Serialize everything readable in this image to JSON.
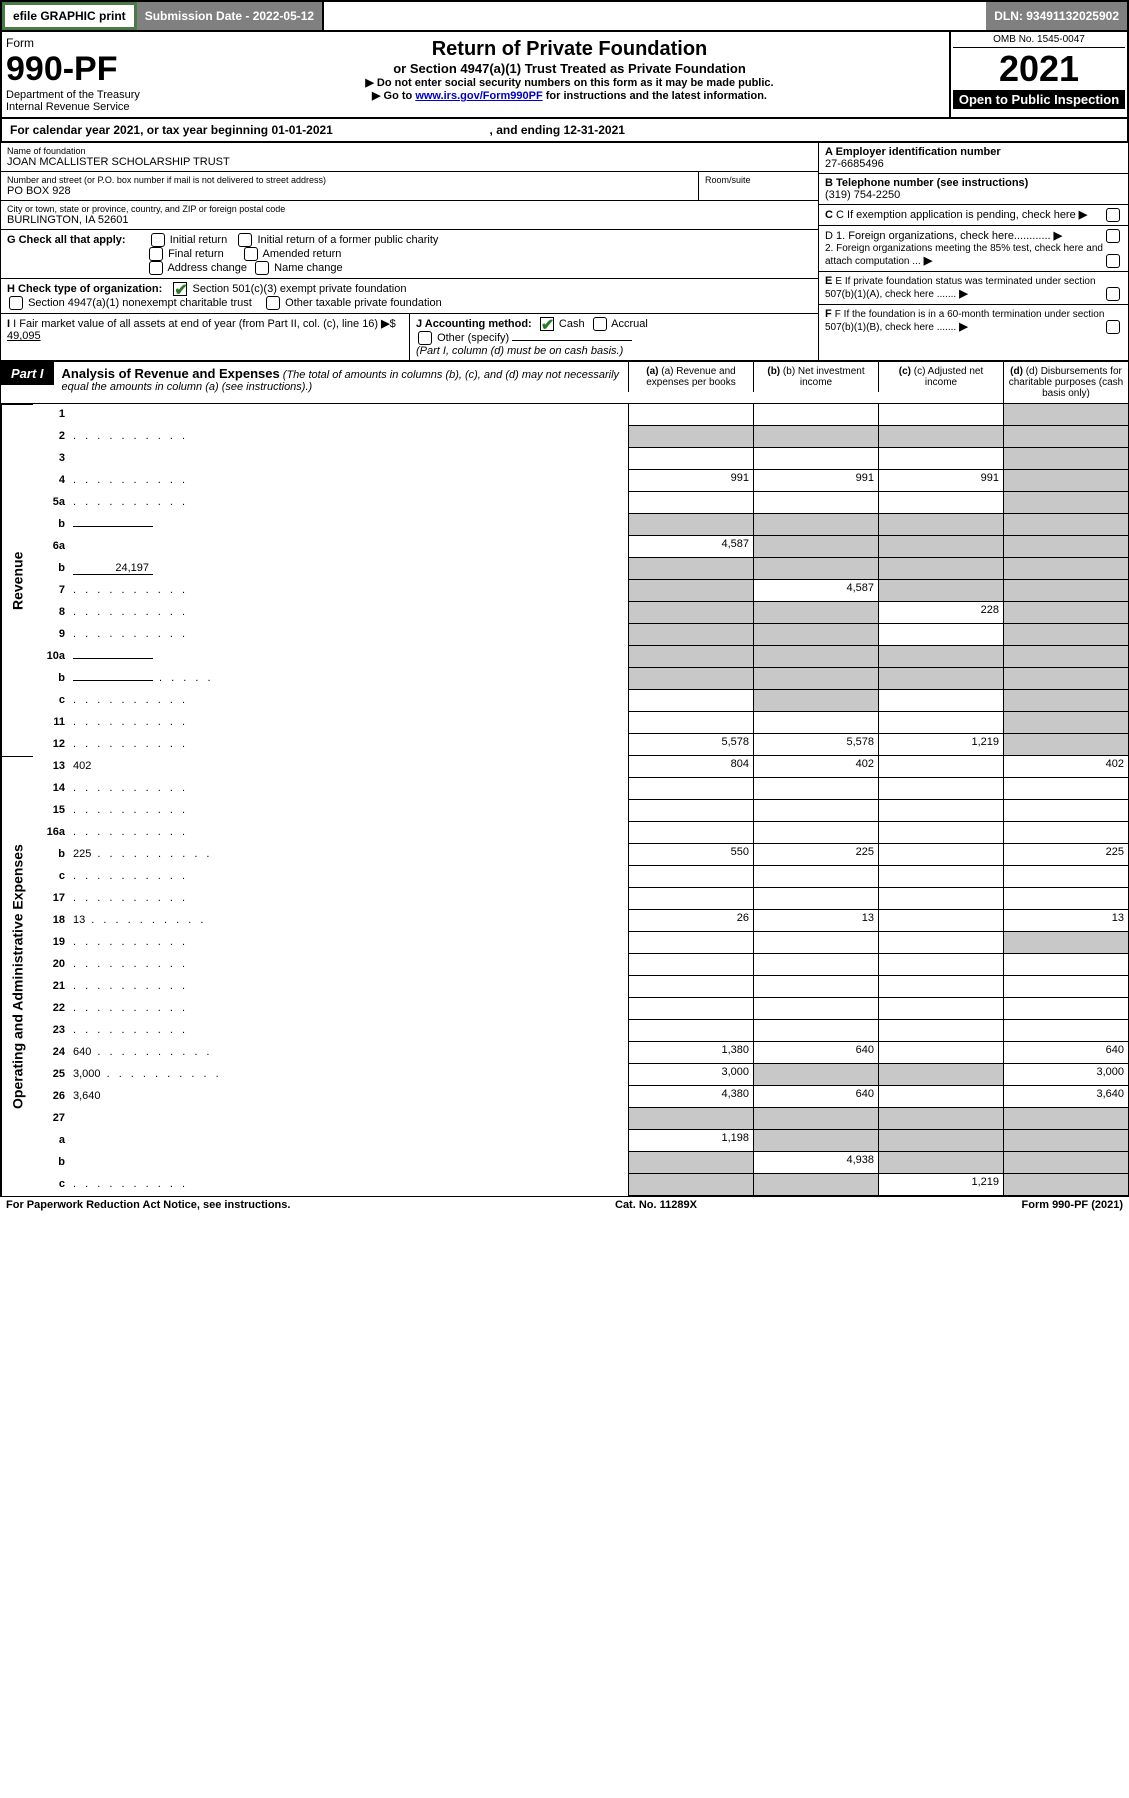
{
  "colors": {
    "text": "#000000",
    "bg": "#ffffff",
    "shade": "#c8c8c8",
    "dark_row": "#808080",
    "link": "#0000cc",
    "check_green": "#2a7a2a",
    "border_green": "#4a7a4a"
  },
  "topbar": {
    "efile": "efile GRAPHIC print",
    "submission_label": "Submission Date - 2022-05-12",
    "dln": "DLN: 93491132025902"
  },
  "header": {
    "form_word": "Form",
    "form_no": "990-PF",
    "dept": "Department of the Treasury",
    "irs": "Internal Revenue Service",
    "title": "Return of Private Foundation",
    "subtitle": "or Section 4947(a)(1) Trust Treated as Private Foundation",
    "instr1": "▶ Do not enter social security numbers on this form as it may be made public.",
    "instr2_pre": "▶ Go to ",
    "instr2_link": "www.irs.gov/Form990PF",
    "instr2_post": " for instructions and the latest information.",
    "omb": "OMB No. 1545-0047",
    "year": "2021",
    "open": "Open to Public Inspection"
  },
  "cal": {
    "line_pre": "For calendar year 2021, or tax year beginning ",
    "begin": "01-01-2021",
    "mid": " , and ending ",
    "end": "12-31-2021"
  },
  "info": {
    "name_lbl": "Name of foundation",
    "name": "JOAN MCALLISTER SCHOLARSHIP TRUST",
    "addr_lbl": "Number and street (or P.O. box number if mail is not delivered to street address)",
    "addr": "PO BOX 928",
    "room_lbl": "Room/suite",
    "room": "",
    "city_lbl": "City or town, state or province, country, and ZIP or foreign postal code",
    "city": "BURLINGTON, IA  52601",
    "A_lbl": "A Employer identification number",
    "A_val": "27-6685496",
    "B_lbl": "B Telephone number (see instructions)",
    "B_val": "(319) 754-2250",
    "C_lbl": "C If exemption application is pending, check here",
    "G_lbl": "G Check all that apply:",
    "G_opts": [
      "Initial return",
      "Initial return of a former public charity",
      "Final return",
      "Amended return",
      "Address change",
      "Name change"
    ],
    "D1": "D 1. Foreign organizations, check here............",
    "D2": "2. Foreign organizations meeting the 85% test, check here and attach computation ...",
    "H_lbl": "H Check type of organization:",
    "H_opts": [
      "Section 501(c)(3) exempt private foundation",
      "Section 4947(a)(1) nonexempt charitable trust",
      "Other taxable private foundation"
    ],
    "E_lbl": "E If private foundation status was terminated under section 507(b)(1)(A), check here .......",
    "I_lbl": "I Fair market value of all assets at end of year (from Part II, col. (c), line 16)",
    "I_val": "49,095",
    "J_lbl": "J Accounting method:",
    "J_opts": [
      "Cash",
      "Accrual",
      "Other (specify)"
    ],
    "J_note": "(Part I, column (d) must be on cash basis.)",
    "F_lbl": "F If the foundation is in a 60-month termination under section 507(b)(1)(B), check here ......."
  },
  "part1": {
    "tab": "Part I",
    "title": "Analysis of Revenue and Expenses",
    "title_note": " (The total of amounts in columns (b), (c), and (d) may not necessarily equal the amounts in column (a) (see instructions).)",
    "col_a": "(a) Revenue and expenses per books",
    "col_b": "(b) Net investment income",
    "col_c": "(c) Adjusted net income",
    "col_d": "(d) Disbursements for charitable purposes (cash basis only)"
  },
  "side_labels": {
    "revenue": "Revenue",
    "expenses": "Operating and Administrative Expenses"
  },
  "lines": [
    {
      "n": "1",
      "d": "",
      "a": "",
      "b": "",
      "c": "",
      "shade_d": true
    },
    {
      "n": "2",
      "d": "",
      "dots": true,
      "a": "",
      "b": "",
      "c": "",
      "shade_all": true
    },
    {
      "n": "3",
      "d": "",
      "a": "",
      "b": "",
      "c": "",
      "shade_d": true
    },
    {
      "n": "4",
      "d": "",
      "dots": true,
      "a": "991",
      "b": "991",
      "c": "991",
      "shade_d": true
    },
    {
      "n": "5a",
      "d": "",
      "dots": true,
      "a": "",
      "b": "",
      "c": "",
      "shade_d": true
    },
    {
      "n": "b",
      "d": "",
      "inset": "",
      "a": "",
      "b": "",
      "c": "",
      "shade_all": true
    },
    {
      "n": "6a",
      "d": "",
      "a": "4,587",
      "b": "",
      "c": "",
      "shade_bcd": true
    },
    {
      "n": "b",
      "d": "",
      "inset": "24,197",
      "a": "",
      "b": "",
      "c": "",
      "shade_all": true
    },
    {
      "n": "7",
      "d": "",
      "dots": true,
      "a": "",
      "b": "4,587",
      "c": "",
      "shade_a": true,
      "shade_cd": true
    },
    {
      "n": "8",
      "d": "",
      "dots": true,
      "a": "",
      "b": "",
      "c": "228",
      "shade_a": true,
      "shade_b": true,
      "shade_d": true
    },
    {
      "n": "9",
      "d": "",
      "dots": true,
      "a": "",
      "b": "",
      "c": "",
      "shade_a": true,
      "shade_b": true,
      "shade_d": true
    },
    {
      "n": "10a",
      "d": "",
      "inset": "",
      "a": "",
      "b": "",
      "c": "",
      "shade_all": true
    },
    {
      "n": "b",
      "d": "",
      "dots_s": true,
      "inset": "",
      "a": "",
      "b": "",
      "c": "",
      "shade_all": true
    },
    {
      "n": "c",
      "d": "",
      "dots": true,
      "a": "",
      "b": "",
      "c": "",
      "shade_b": true,
      "shade_d": true
    },
    {
      "n": "11",
      "d": "",
      "dots": true,
      "a": "",
      "b": "",
      "c": "",
      "shade_d": true
    },
    {
      "n": "12",
      "d": "",
      "dots": true,
      "a": "5,578",
      "b": "5,578",
      "c": "1,219",
      "shade_d": true,
      "border": true
    },
    {
      "n": "13",
      "d": "402",
      "a": "804",
      "b": "402",
      "c": ""
    },
    {
      "n": "14",
      "d": "",
      "dots": true,
      "a": "",
      "b": "",
      "c": ""
    },
    {
      "n": "15",
      "d": "",
      "dots": true,
      "a": "",
      "b": "",
      "c": ""
    },
    {
      "n": "16a",
      "d": "",
      "dots": true,
      "a": "",
      "b": "",
      "c": ""
    },
    {
      "n": "b",
      "d": "225",
      "dots": true,
      "a": "550",
      "b": "225",
      "c": ""
    },
    {
      "n": "c",
      "d": "",
      "dots": true,
      "a": "",
      "b": "",
      "c": ""
    },
    {
      "n": "17",
      "d": "",
      "dots": true,
      "a": "",
      "b": "",
      "c": ""
    },
    {
      "n": "18",
      "d": "13",
      "dots": true,
      "a": "26",
      "b": "13",
      "c": ""
    },
    {
      "n": "19",
      "d": "",
      "dots": true,
      "a": "",
      "b": "",
      "c": "",
      "shade_d": true
    },
    {
      "n": "20",
      "d": "",
      "dots": true,
      "a": "",
      "b": "",
      "c": ""
    },
    {
      "n": "21",
      "d": "",
      "dots": true,
      "a": "",
      "b": "",
      "c": ""
    },
    {
      "n": "22",
      "d": "",
      "dots": true,
      "a": "",
      "b": "",
      "c": ""
    },
    {
      "n": "23",
      "d": "",
      "dots": true,
      "a": "",
      "b": "",
      "c": ""
    },
    {
      "n": "24",
      "d": "640",
      "dots": true,
      "a": "1,380",
      "b": "640",
      "c": ""
    },
    {
      "n": "25",
      "d": "3,000",
      "dots": true,
      "a": "3,000",
      "b": "",
      "c": "",
      "shade_b": true,
      "shade_c": true
    },
    {
      "n": "26",
      "d": "3,640",
      "a": "4,380",
      "b": "640",
      "c": "",
      "border": true
    },
    {
      "n": "27",
      "d": "",
      "a": "",
      "b": "",
      "c": "",
      "shade_all": true
    },
    {
      "n": "a",
      "d": "",
      "a": "1,198",
      "b": "",
      "c": "",
      "shade_bcd": true
    },
    {
      "n": "b",
      "d": "",
      "a": "",
      "b": "4,938",
      "c": "",
      "shade_a": true,
      "shade_cd": true
    },
    {
      "n": "c",
      "d": "",
      "dots": true,
      "a": "",
      "b": "",
      "c": "1,219",
      "shade_a": true,
      "shade_b": true,
      "shade_d": true,
      "border": true
    }
  ],
  "footer": {
    "left": "For Paperwork Reduction Act Notice, see instructions.",
    "mid": "Cat. No. 11289X",
    "right": "Form 990-PF (2021)"
  }
}
